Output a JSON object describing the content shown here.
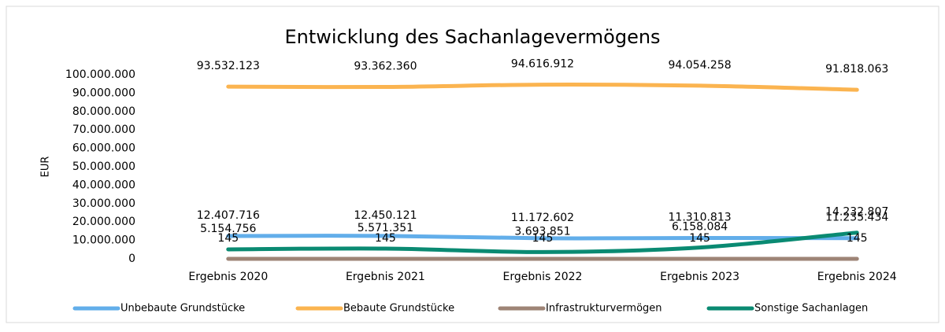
{
  "chart_data": {
    "type": "line",
    "title": "Entwicklung des Sachanlagevermögens",
    "y_label": "EUR",
    "categories": [
      "Ergebnis 2020",
      "Ergebnis 2021",
      "Ergebnis 2022",
      "Ergebnis 2023",
      "Ergebnis 2024"
    ],
    "series": [
      {
        "name": "Unbebaute Grundstücke",
        "color": "#62aeea",
        "values": [
          12407716,
          12450121,
          11172602,
          11310813,
          11235434
        ],
        "value_labels": [
          "12.407.716",
          "12.450.121",
          "11.172.602",
          "11.310.813",
          "11.235.434"
        ]
      },
      {
        "name": "Bebaute Grundstücke",
        "color": "#fbb450",
        "values": [
          93532123,
          93362360,
          94616912,
          94054258,
          91818063
        ],
        "value_labels": [
          "93.532.123",
          "93.362.360",
          "94.616.912",
          "94.054.258",
          "91.818.063"
        ]
      },
      {
        "name": "Infrastrukturvermögen",
        "color": "#9e8476",
        "values": [
          145,
          145,
          145,
          145,
          145
        ]
      },
      {
        "name": "Sonstige Sachanlagen",
        "color": "#0a8a72",
        "values": [
          5154756,
          5571351,
          3693851,
          6158084,
          14232807
        ],
        "value_labels": [
          "5.154.756",
          "5.571.351",
          "3.693.851",
          "6.158.084",
          "14.232.807"
        ]
      }
    ],
    "ylim": [
      0,
      100000000
    ],
    "yticks": [
      0,
      {
        "value": 10000000,
        "label": "10.000.000"
      },
      {
        "value": 20000000,
        "label": "20.000.000"
      },
      {
        "value": 30000000,
        "label": "30.000.000"
      },
      {
        "value": 40000000,
        "label": "40.000.000"
      },
      {
        "value": 50000000,
        "label": "50.000.000"
      },
      {
        "value": 60000000,
        "label": "60.000.000"
      },
      {
        "value": 70000000,
        "label": "70.000.000"
      },
      {
        "value": 80000000,
        "label": "80.000.000"
      },
      {
        "value": 90000000,
        "label": "90.000.000"
      },
      {
        "value": 100000000,
        "label": "100.000.000"
      }
    ],
    "grid": false,
    "legend": "bottom"
  }
}
